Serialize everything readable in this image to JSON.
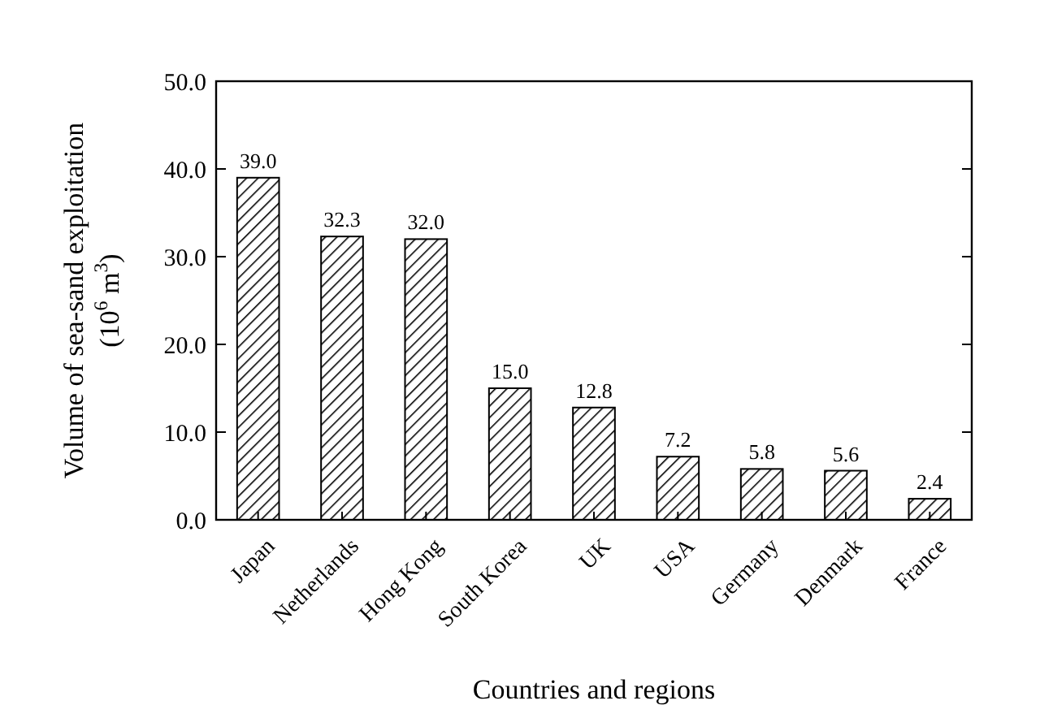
{
  "chart_data": {
    "type": "bar",
    "xlabel": "Countries and regions",
    "ylabel": "Volume of sea-sand exploitation\n(10$^{6}$ m$^{3}$)",
    "categories": [
      "Japan",
      "Netherlands",
      "Hong Kong",
      "South Korea",
      "UK",
      "USA",
      "Germany",
      "Denmark",
      "France"
    ],
    "values": [
      39.0,
      32.3,
      32.0,
      15.0,
      12.8,
      7.2,
      5.8,
      5.6,
      2.4
    ],
    "value_labels": [
      "39.0",
      "32.3",
      "32.0",
      "15.0",
      "12.8",
      "7.2",
      "5.8",
      "5.6",
      "2.4"
    ],
    "color": "#000000",
    "ylim": [
      0,
      50
    ],
    "yticks": [
      {
        "value": 0,
        "label": "0.0"
      },
      {
        "value": 10,
        "label": "10.0"
      },
      {
        "value": 20,
        "label": "20.0"
      },
      {
        "value": 30,
        "label": "30.0"
      },
      {
        "value": 40,
        "label": "40.0"
      },
      {
        "value": 50,
        "label": "50.0"
      }
    ],
    "grid": false
  }
}
